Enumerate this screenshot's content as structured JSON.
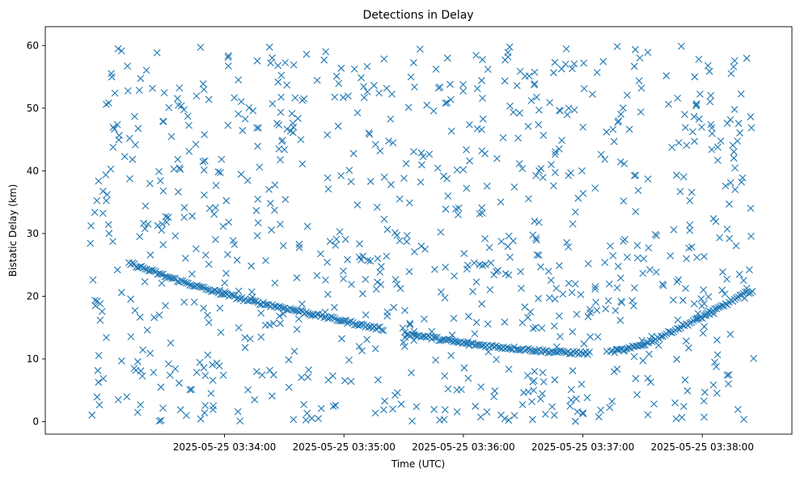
{
  "chart_data": {
    "type": "scatter",
    "title": "Detections in Delay",
    "xlabel": "Time (UTC)",
    "ylabel": "Bistatic Delay (km)",
    "x_start": "2025-05-25 03:32:52",
    "x_end": "2025-05-25 03:38:26",
    "xlim": [
      "2025-05-25 03:32:30",
      "2025-05-25 03:38:45"
    ],
    "ylim": [
      -2,
      63
    ],
    "x_ticks": [
      "2025-05-25 03:34:00",
      "2025-05-25 03:35:00",
      "2025-05-25 03:36:00",
      "2025-05-25 03:37:00",
      "2025-05-25 03:38:00"
    ],
    "y_ticks": [
      "0",
      "10",
      "20",
      "30",
      "40",
      "50",
      "60"
    ],
    "marker": "x",
    "color": "#1f77b4",
    "grid": false,
    "legend": "none",
    "series": [
      {
        "description": "target track (delay vs time in seconds from 03:32:52)",
        "x": [
          0,
          20,
          40,
          60,
          80,
          100,
          120,
          140,
          160,
          175,
          190,
          210,
          230,
          250,
          258,
          270,
          280,
          290,
          310,
          330,
          334
        ],
        "y": [
          28.0,
          25.3,
          23.0,
          21.0,
          19.3,
          18.0,
          16.6,
          15.2,
          14.0,
          13.2,
          12.4,
          11.8,
          11.2,
          10.9,
          11.0,
          11.5,
          12.5,
          14.0,
          17.0,
          20.5,
          21.0
        ]
      }
    ],
    "clutter_count": 900,
    "clutter_y_range": [
      0,
      60
    ]
  }
}
